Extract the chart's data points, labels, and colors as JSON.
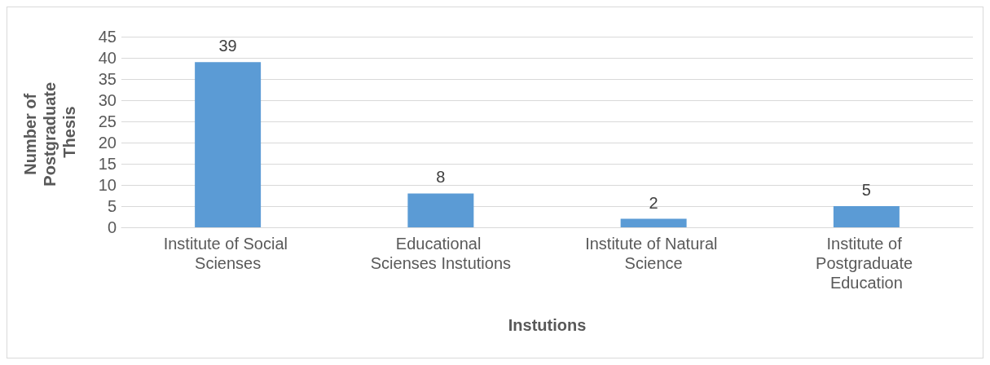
{
  "chart_data": {
    "type": "bar",
    "xlabel": "Instutions",
    "ylabel": "Number of Postgraduate Thesis",
    "categories": [
      "Institute of Social Scienses",
      "Educational Scienses Instutions",
      "Institute of Natural Science",
      "Institute of Postgraduate Education"
    ],
    "values": [
      39,
      8,
      2,
      5
    ],
    "color": "#5b9bd5",
    "ylim": [
      0,
      45
    ],
    "yticks": [
      0,
      5,
      10,
      15,
      20,
      25,
      30,
      35,
      40,
      45
    ],
    "grid": "y",
    "data_labels": true
  }
}
